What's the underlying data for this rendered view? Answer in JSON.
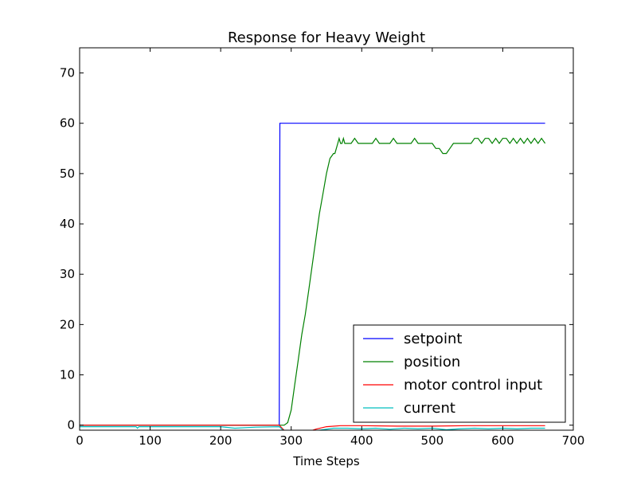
{
  "chart_data": {
    "type": "line",
    "title": "Response for Heavy Weight",
    "xlabel": "Time Steps",
    "ylabel": "",
    "xlim": [
      0,
      700
    ],
    "ylim": [
      -1,
      75
    ],
    "xticks": [
      0,
      100,
      200,
      300,
      400,
      500,
      600,
      700
    ],
    "yticks": [
      0,
      10,
      20,
      30,
      40,
      50,
      60,
      70
    ],
    "grid": false,
    "legend_position": "lower-right",
    "series": [
      {
        "name": "setpoint",
        "color": "#0000ff",
        "x": [
          0,
          283,
          284,
          660
        ],
        "y": [
          0,
          0,
          60,
          60
        ]
      },
      {
        "name": "position",
        "color": "#008000",
        "x": [
          0,
          283,
          290,
          295,
          300,
          305,
          310,
          315,
          320,
          325,
          330,
          335,
          340,
          345,
          350,
          355,
          360,
          362,
          364,
          366,
          368,
          370,
          372,
          374,
          376,
          380,
          385,
          390,
          395,
          400,
          405,
          410,
          415,
          420,
          425,
          430,
          435,
          440,
          445,
          450,
          455,
          460,
          465,
          470,
          475,
          480,
          485,
          490,
          495,
          500,
          505,
          510,
          515,
          520,
          525,
          530,
          535,
          540,
          545,
          550,
          555,
          560,
          565,
          570,
          575,
          580,
          585,
          590,
          595,
          600,
          605,
          610,
          615,
          620,
          625,
          630,
          635,
          640,
          645,
          650,
          655,
          660
        ],
        "y": [
          0,
          0,
          0,
          0.5,
          3,
          8,
          13,
          18,
          22,
          27,
          32,
          37,
          42,
          46,
          50,
          53,
          54,
          54,
          55,
          56,
          57,
          56,
          56,
          57,
          56,
          56,
          56,
          57,
          56,
          56,
          56,
          56,
          56,
          57,
          56,
          56,
          56,
          56,
          57,
          56,
          56,
          56,
          56,
          56,
          57,
          56,
          56,
          56,
          56,
          56,
          55,
          55,
          54,
          54,
          55,
          56,
          56,
          56,
          56,
          56,
          56,
          57,
          57,
          56,
          57,
          57,
          56,
          57,
          56,
          57,
          57,
          56,
          57,
          56,
          57,
          56,
          57,
          56,
          57,
          56,
          57,
          56
        ]
      },
      {
        "name": "motor control input",
        "color": "#ff0000",
        "x": [
          0,
          283,
          300,
          320,
          335,
          350,
          370,
          400,
          450,
          500,
          550,
          600,
          660
        ],
        "y": [
          0,
          0,
          -2.5,
          -1.5,
          -0.8,
          -0.3,
          -0.1,
          -0.1,
          -0.2,
          -0.2,
          -0.1,
          -0.1,
          -0.1
        ]
      },
      {
        "name": "current",
        "color": "#00bfbf",
        "x": [
          0,
          80,
          82,
          84,
          150,
          200,
          220,
          250,
          283,
          300,
          320,
          340,
          360,
          380,
          400,
          420,
          440,
          460,
          480,
          500,
          520,
          540,
          560,
          580,
          600,
          620,
          640,
          660
        ],
        "y": [
          -0.3,
          -0.3,
          -0.6,
          -0.3,
          -0.3,
          -0.3,
          -0.6,
          -0.4,
          -0.3,
          -2.5,
          -1.8,
          -1.0,
          -0.6,
          -0.6,
          -0.7,
          -0.6,
          -0.8,
          -0.6,
          -0.7,
          -0.6,
          -0.9,
          -0.7,
          -0.6,
          -0.7,
          -0.6,
          -0.7,
          -0.6,
          -0.6
        ]
      }
    ]
  }
}
